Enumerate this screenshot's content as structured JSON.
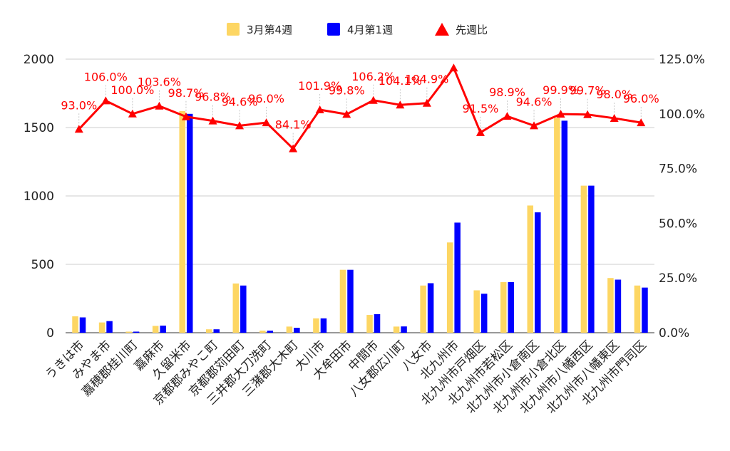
{
  "chart_data": {
    "type": "bar",
    "categories": [
      "うきは市",
      "みやま市",
      "嘉穂郡桂川町",
      "嘉麻市",
      "久留米市",
      "京都郡みやこ町",
      "京都郡苅田町",
      "三井郡大刀洗町",
      "三潴郡大木町",
      "大川市",
      "大牟田市",
      "中間市",
      "八女郡広川町",
      "八女市",
      "北九州市",
      "北九州市戸畑区",
      "北九州市若松区",
      "北九州市小倉南区",
      "北九州市小倉北区",
      "北九州市八幡西区",
      "北九州市八幡東区",
      "北九州市門司区"
    ],
    "series": [
      {
        "name": "3月第4週",
        "color": "#fdd663",
        "axis": "left",
        "values": [
          120,
          75,
          8,
          50,
          1620,
          25,
          360,
          15,
          45,
          105,
          460,
          130,
          45,
          345,
          660,
          310,
          370,
          930,
          1570,
          1075,
          400,
          345
        ]
      },
      {
        "name": "4月第1週",
        "color": "#0000ff",
        "axis": "left",
        "values": [
          112,
          85,
          8,
          52,
          1600,
          25,
          345,
          15,
          36,
          105,
          460,
          136,
          46,
          362,
          805,
          285,
          370,
          880,
          1550,
          1075,
          388,
          330
        ]
      },
      {
        "name": "先週比",
        "color": "#ff0000",
        "axis": "right",
        "type": "line",
        "values": [
          93.0,
          106.0,
          100.0,
          103.6,
          98.7,
          96.8,
          94.6,
          96.0,
          84.1,
          101.9,
          99.8,
          106.2,
          104.1,
          104.9,
          121.0,
          91.5,
          98.9,
          94.6,
          99.9,
          99.7,
          98.0,
          96.0
        ],
        "labels": [
          "93.0%",
          "106.0%",
          "100.0%",
          "103.6%",
          "98.7%",
          "96.8%",
          "94.6%",
          "96.0%",
          "84.1%",
          "101.9%",
          "99.8%",
          "106.2%",
          "104.1%",
          "104.9%",
          "",
          "91.5%",
          "98.9%",
          "94.6%",
          "99.9%",
          "99.7%",
          "98.0%",
          "96.0%"
        ]
      }
    ],
    "left_axis": {
      "min": 0,
      "max": 2000,
      "ticks": [
        "0",
        "500",
        "1000",
        "1500",
        "2000"
      ]
    },
    "right_axis": {
      "min": 0,
      "max": 125,
      "ticks": [
        "0.0%",
        "25.0%",
        "50.0%",
        "75.0%",
        "100.0%",
        "125.0%"
      ]
    },
    "legend_position": "top",
    "grid": true
  }
}
